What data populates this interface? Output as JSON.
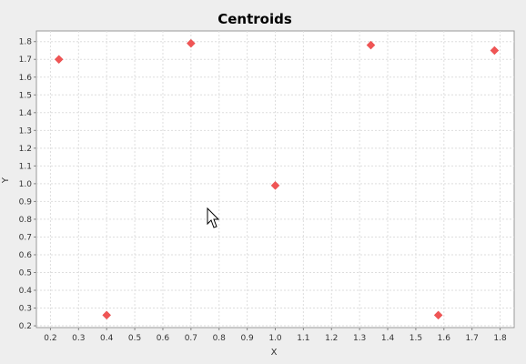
{
  "chart_data": {
    "type": "scatter",
    "title": "Centroids",
    "xlabel": "X",
    "ylabel": "Y",
    "xlim": [
      0.15,
      1.85
    ],
    "ylim": [
      0.19,
      1.86
    ],
    "x_ticks": [
      "0.2",
      "0.3",
      "0.4",
      "0.5",
      "0.6",
      "0.7",
      "0.8",
      "0.9",
      "1.0",
      "1.1",
      "1.2",
      "1.3",
      "1.4",
      "1.5",
      "1.6",
      "1.7",
      "1.8"
    ],
    "y_ticks": [
      "0.2",
      "0.3",
      "0.4",
      "0.5",
      "0.6",
      "0.7",
      "0.8",
      "0.9",
      "1.0",
      "1.1",
      "1.2",
      "1.3",
      "1.4",
      "1.5",
      "1.6",
      "1.7",
      "1.8"
    ],
    "grid": true,
    "legend": "none",
    "marker": "diamond",
    "point_color": "#f05555",
    "plot_background": "#ffffff",
    "window_background": "#eeeeee",
    "points": [
      {
        "x": 0.23,
        "y": 1.7
      },
      {
        "x": 0.4,
        "y": 0.26
      },
      {
        "x": 0.7,
        "y": 1.79
      },
      {
        "x": 1.0,
        "y": 0.99
      },
      {
        "x": 1.34,
        "y": 1.78
      },
      {
        "x": 1.58,
        "y": 0.26
      },
      {
        "x": 1.78,
        "y": 1.75
      }
    ]
  },
  "cursor": {
    "icon": "mouse-pointer-icon"
  }
}
